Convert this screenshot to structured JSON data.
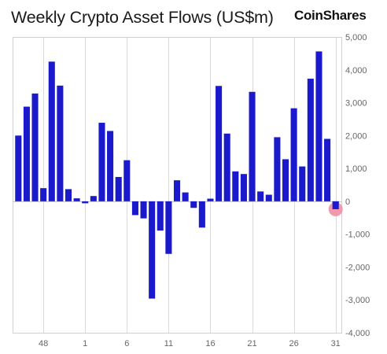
{
  "title": "Weekly Crypto Asset Flows (US$m)",
  "brand": "CoinShares",
  "chart_data": {
    "type": "bar",
    "title": "Weekly Crypto Asset Flows (US$m)",
    "xlabel": "",
    "ylabel": "",
    "ylim": [
      -4000,
      5000
    ],
    "y_ticks": [
      5000,
      4000,
      3000,
      2000,
      1000,
      0,
      -1000,
      -2000,
      -3000,
      -4000
    ],
    "y_tick_labels": [
      "5,000",
      "4,000",
      "3,000",
      "2,000",
      "1,000",
      "0",
      "-1,000",
      "-2,000",
      "-3,000",
      "-4,000"
    ],
    "y_axis_position": "right",
    "x_tick_labels": [
      "48",
      "1",
      "6",
      "11",
      "16",
      "21",
      "26",
      "31"
    ],
    "x_tick_weeks": [
      48,
      1,
      6,
      11,
      16,
      21,
      26,
      31
    ],
    "grid": true,
    "bar_color": "#1a1acc",
    "highlight_color": "#ef8fa5",
    "categories": [
      45,
      46,
      47,
      48,
      49,
      50,
      51,
      52,
      1,
      2,
      3,
      4,
      5,
      6,
      7,
      8,
      9,
      10,
      11,
      12,
      13,
      14,
      15,
      16,
      17,
      18,
      19,
      20,
      21,
      22,
      23,
      24,
      25,
      26,
      27,
      28,
      29,
      30,
      31
    ],
    "values": [
      2000,
      2880,
      3280,
      400,
      4250,
      3520,
      370,
      90,
      -60,
      160,
      2390,
      2140,
      740,
      1250,
      -420,
      -520,
      -2960,
      -890,
      -1600,
      640,
      270,
      -200,
      -800,
      80,
      3510,
      2060,
      910,
      830,
      3330,
      300,
      200,
      1950,
      1280,
      2830,
      1060,
      3730,
      4560,
      1900,
      -240
    ],
    "highlight_index": 38
  }
}
